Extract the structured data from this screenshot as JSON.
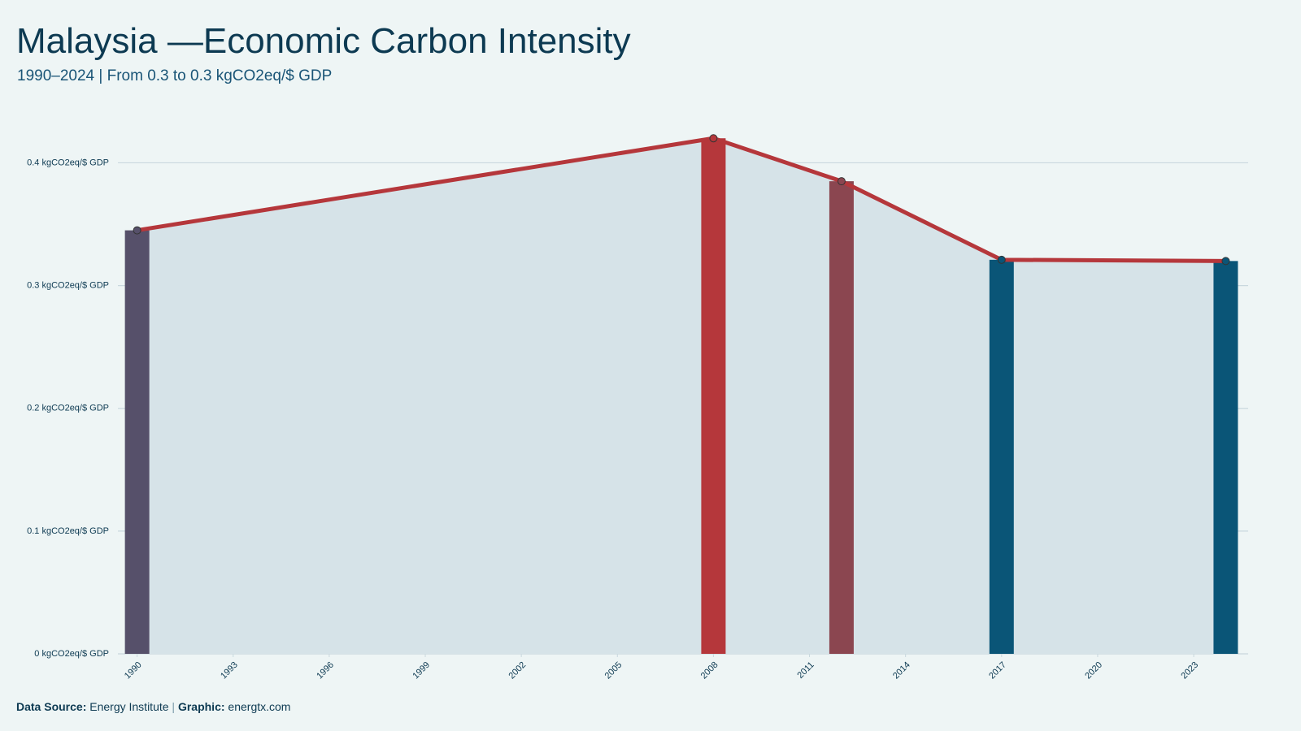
{
  "chart_data": {
    "type": "line",
    "title": "Malaysia —Economic Carbon Intensity",
    "subtitle": "1990–2024 | From 0.3 to 0.3 kgCO2eq/$ GDP",
    "x": [
      1990,
      2008,
      2012,
      2017,
      2024
    ],
    "series": [
      {
        "color": "#b5373b",
        "values": [
          0.345,
          0.42,
          0.385,
          0.321,
          0.32
        ],
        "bar_colors": [
          "#56506a",
          "#b5373b",
          "#8b4650",
          "#0a5577",
          "#0a5577"
        ]
      }
    ],
    "area_color": "#d6e3e8",
    "xlim": [
      1989.4,
      2024.7
    ],
    "xticks": [
      1990,
      1993,
      1996,
      1999,
      2002,
      2005,
      2008,
      2011,
      2014,
      2017,
      2020,
      2023
    ],
    "ylim": [
      0,
      0.44
    ],
    "yticks": [
      {
        "value": 0,
        "label": "0 kgCO2eq/$ GDP"
      },
      {
        "value": 0.1,
        "label": "0.1 kgCO2eq/$ GDP"
      },
      {
        "value": 0.2,
        "label": "0.2 kgCO2eq/$ GDP"
      },
      {
        "value": 0.3,
        "label": "0.3 kgCO2eq/$ GDP"
      },
      {
        "value": 0.4,
        "label": "0.4 kgCO2eq/$ GDP"
      }
    ],
    "grid": true,
    "footer": {
      "source_label": "Data Source:",
      "source": "Energy Institute",
      "separator": "|",
      "graphic_label": "Graphic:",
      "graphic": "energtx.com"
    }
  }
}
